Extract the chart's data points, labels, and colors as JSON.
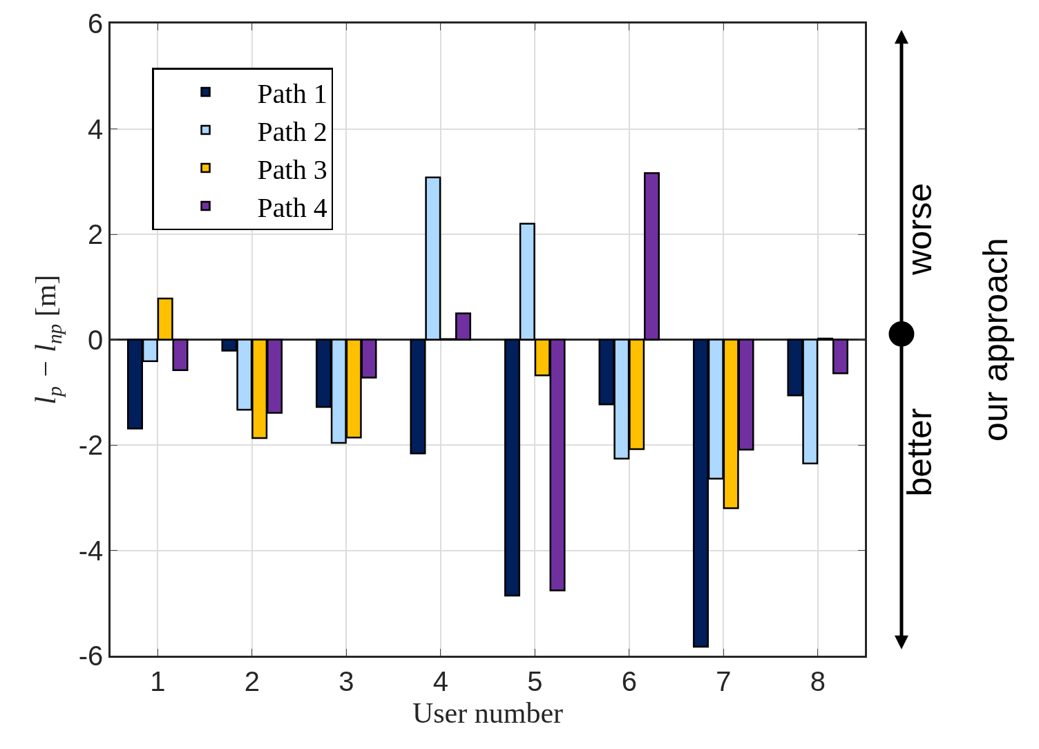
{
  "chart_data": {
    "type": "bar",
    "xlabel": "User number",
    "ylabel": "l$_{p}$ − l$_{np}$ [m]",
    "categories": [
      "1",
      "2",
      "3",
      "4",
      "5",
      "6",
      "7",
      "8"
    ],
    "series": [
      {
        "name": "Path 1",
        "color": "#001f5b",
        "values": [
          -1.69,
          -0.21,
          -1.28,
          -2.16,
          -4.86,
          -1.23,
          -5.83,
          -1.06
        ]
      },
      {
        "name": "Path 2",
        "color": "#add8ff",
        "values": [
          -0.41,
          -1.33,
          -1.96,
          3.08,
          2.2,
          -2.26,
          -2.64,
          -2.35
        ]
      },
      {
        "name": "Path 3",
        "color": "#ffc000",
        "values": [
          0.78,
          -1.87,
          -1.86,
          0.01,
          -0.68,
          -2.08,
          -3.2,
          0.02
        ]
      },
      {
        "name": "Path 4",
        "color": "#7030a0",
        "values": [
          -0.58,
          -1.39,
          -0.72,
          0.5,
          -4.76,
          3.16,
          -2.09,
          -0.64
        ]
      }
    ],
    "ylim": [
      -6,
      6
    ],
    "yticks": [
      -6,
      -4,
      -2,
      0,
      2,
      4,
      6
    ],
    "grid": true,
    "legend": "top left",
    "annotations": [
      "worse",
      "better",
      "our approach"
    ]
  }
}
